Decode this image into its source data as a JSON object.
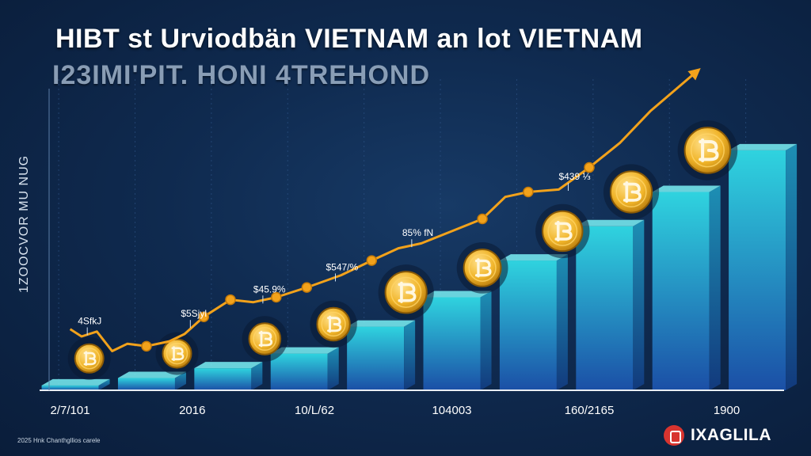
{
  "title": "HIBT st Urviodbän VIETNAM an lot VIETNAM",
  "subtitle": "I23IMI'PIT. HONI 4TREHOND",
  "ylabel": "1ZOOCVOR MU NUG",
  "footnote": "2025 Hnk Chanthgllios carele",
  "brand": "IXAGLILA",
  "colors": {
    "line": "#f2a21b",
    "bar_top": "#2fd3df",
    "bar_bottom": "#1b4fa6",
    "coin": "#f0b429"
  },
  "chart_data": {
    "type": "bar",
    "xtick_labels": [
      "2/7/101",
      "2016",
      "10/L/62",
      "104003",
      "160/2165",
      "1900"
    ],
    "bars": [
      {
        "value": 1.0
      },
      {
        "value": 2.5
      },
      {
        "value": 4.5
      },
      {
        "value": 7.5
      },
      {
        "value": 13.0
      },
      {
        "value": 19.0
      },
      {
        "value": 26.5
      },
      {
        "value": 33.5
      },
      {
        "value": 40.5
      },
      {
        "value": 49.0
      }
    ],
    "line": {
      "points": [
        {
          "x": 0.0,
          "y": 12.5
        },
        {
          "x": 0.15,
          "y": 11.0
        },
        {
          "x": 0.35,
          "y": 12.0
        },
        {
          "x": 0.55,
          "y": 8.0
        },
        {
          "x": 0.75,
          "y": 9.5
        },
        {
          "x": 1.0,
          "y": 9.0
        },
        {
          "x": 1.3,
          "y": 10.0
        },
        {
          "x": 1.5,
          "y": 11.5
        },
        {
          "x": 1.75,
          "y": 15.0
        },
        {
          "x": 2.1,
          "y": 18.5
        },
        {
          "x": 2.4,
          "y": 18.0
        },
        {
          "x": 2.7,
          "y": 19.0
        },
        {
          "x": 3.1,
          "y": 21.0
        },
        {
          "x": 3.55,
          "y": 23.5
        },
        {
          "x": 3.95,
          "y": 26.5
        },
        {
          "x": 4.3,
          "y": 29.0
        },
        {
          "x": 4.6,
          "y": 30.0
        },
        {
          "x": 5.0,
          "y": 32.5
        },
        {
          "x": 5.4,
          "y": 35.0
        },
        {
          "x": 5.7,
          "y": 39.5
        },
        {
          "x": 6.0,
          "y": 40.5
        },
        {
          "x": 6.4,
          "y": 41.0
        },
        {
          "x": 6.8,
          "y": 45.5
        },
        {
          "x": 7.2,
          "y": 50.5
        },
        {
          "x": 7.6,
          "y": 57.0
        },
        {
          "x": 8.2,
          "y": 65.0
        }
      ],
      "markers": [
        1.0,
        1.75,
        2.1,
        2.7,
        3.1,
        3.95,
        5.4,
        6.0,
        6.8
      ]
    },
    "annotations": [
      {
        "text": "4SfkJ",
        "x": 0.1,
        "y": 13.5
      },
      {
        "text": "$5Sjyl",
        "x": 1.45,
        "y": 15.0
      },
      {
        "text": "$45.9%",
        "x": 2.4,
        "y": 20.0
      },
      {
        "text": "$547/%",
        "x": 3.35,
        "y": 24.5
      },
      {
        "text": "85% fN",
        "x": 4.35,
        "y": 31.5
      },
      {
        "text": "$439 ⅓",
        "x": 6.4,
        "y": 43.0
      }
    ],
    "coins": [
      {
        "x": 0.25,
        "y": 6.5,
        "size": 1.0
      },
      {
        "x": 1.4,
        "y": 7.5,
        "size": 1.0
      },
      {
        "x": 2.55,
        "y": 10.5,
        "size": 1.1
      },
      {
        "x": 3.45,
        "y": 13.5,
        "size": 1.15
      },
      {
        "x": 4.4,
        "y": 20.0,
        "size": 1.45
      },
      {
        "x": 5.4,
        "y": 25.0,
        "size": 1.3
      },
      {
        "x": 6.45,
        "y": 32.5,
        "size": 1.4
      },
      {
        "x": 7.35,
        "y": 40.5,
        "size": 1.45
      },
      {
        "x": 8.35,
        "y": 49.0,
        "size": 1.6
      }
    ],
    "xlim": [
      -0.4,
      9.3
    ],
    "ylim": [
      0,
      70
    ],
    "grid": true
  }
}
